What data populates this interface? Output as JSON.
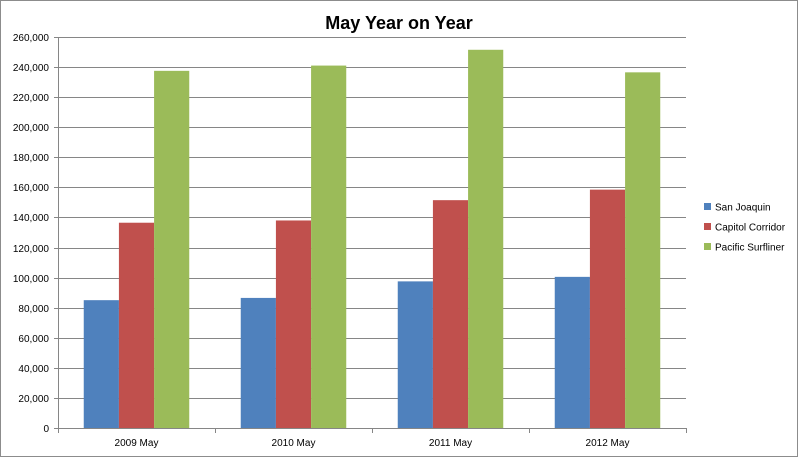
{
  "chart_data": {
    "type": "bar",
    "title": "May Year on Year",
    "xlabel": "",
    "ylabel": "",
    "categories": [
      "2009 May",
      "2010 May",
      "2011 May",
      "2012 May"
    ],
    "series": [
      {
        "name": "San Joaquin",
        "color": "#4f81bd",
        "values": [
          85000,
          86500,
          97500,
          100500
        ]
      },
      {
        "name": "Capitol Corridor",
        "color": "#c0504d",
        "values": [
          136500,
          138000,
          151500,
          158500
        ]
      },
      {
        "name": "Pacific Surfliner",
        "color": "#9bbb59",
        "values": [
          237500,
          241000,
          251500,
          236500
        ]
      }
    ],
    "ylim": [
      0,
      260000
    ],
    "yticks": [
      "0",
      "20,000",
      "40,000",
      "60,000",
      "80,000",
      "100,000",
      "120,000",
      "140,000",
      "160,000",
      "180,000",
      "200,000",
      "220,000",
      "240,000",
      "260,000"
    ],
    "grid": true,
    "legend_position": "right"
  }
}
